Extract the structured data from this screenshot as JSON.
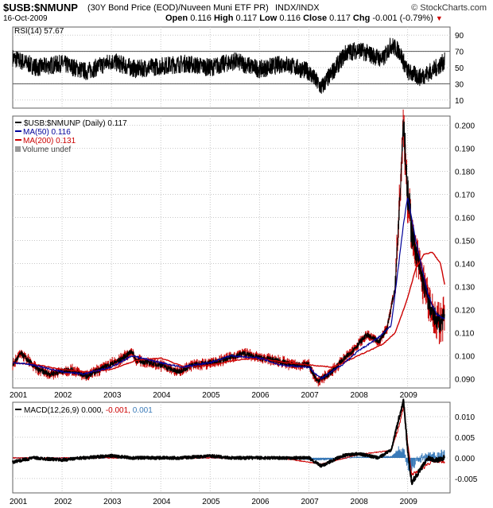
{
  "header": {
    "symbol": "$USB:$NMUNP",
    "description": "(30Y Bond Price (EOD)/Nuveen Muni ETF PR)",
    "instrument": "INDX/INDX",
    "brand": "© StockCharts.com",
    "date": "16-Oct-2009",
    "open_label": "Open",
    "open": "0.116",
    "high_label": "High",
    "high": "0.117",
    "low_label": "Low",
    "low": "0.116",
    "close_label": "Close",
    "close": "0.117",
    "chg_label": "Chg",
    "chg": "-0.001 (-0.79%)",
    "chg_color": "#cc0000"
  },
  "colors": {
    "price": "#000000",
    "ma50": "#000099",
    "ma200": "#cc0000",
    "red_candle": "#cc0000",
    "macd_hist": "#3a7ab8",
    "macd_signal": "#cc0000",
    "macd_line": "#000000",
    "grid": "#c8c8c8",
    "frame": "#606060"
  },
  "chart_data": [
    {
      "type": "line",
      "panel": "rsi",
      "legend": "RSI(14) 57.67",
      "yticks": [
        10,
        30,
        50,
        70,
        90
      ],
      "ylim": [
        0,
        100
      ],
      "reference_lines": [
        30,
        70
      ],
      "x_start": "2001-01",
      "x_end": "2009-10",
      "series": [
        {
          "name": "RSI(14)",
          "x": [
            "2001-01",
            "2001-07",
            "2002-01",
            "2002-07",
            "2003-01",
            "2003-07",
            "2004-01",
            "2004-07",
            "2005-01",
            "2005-07",
            "2006-01",
            "2006-07",
            "2007-01",
            "2007-04",
            "2007-10",
            "2008-01",
            "2008-07",
            "2008-09",
            "2008-11",
            "2009-01",
            "2009-04",
            "2009-07",
            "2009-10"
          ],
          "values": [
            62,
            50,
            55,
            45,
            58,
            48,
            52,
            55,
            50,
            58,
            48,
            55,
            45,
            25,
            68,
            72,
            60,
            78,
            70,
            45,
            38,
            46,
            57.67
          ]
        }
      ]
    },
    {
      "type": "line",
      "panel": "price",
      "legend": [
        "$USB:$NMUNP (Daily) 0.117",
        "MA(50) 0.116",
        "MA(200) 0.131",
        "Volume undef"
      ],
      "yticks": [
        0.09,
        0.1,
        0.11,
        0.12,
        0.13,
        0.14,
        0.15,
        0.16,
        0.17,
        0.18,
        0.19,
        0.2
      ],
      "ylim": [
        0.086,
        0.204
      ],
      "xticks": [
        "2001",
        "2002",
        "2003",
        "2004",
        "2005",
        "2006",
        "2007",
        "2008",
        "2009"
      ],
      "series": [
        {
          "name": "$USB:$NMUNP (Daily)",
          "x": [
            "2001-01",
            "2001-03",
            "2001-07",
            "2001-10",
            "2002-03",
            "2002-07",
            "2002-10",
            "2003-03",
            "2003-06",
            "2003-07",
            "2003-10",
            "2004-01",
            "2004-05",
            "2004-09",
            "2005-01",
            "2005-04",
            "2005-09",
            "2006-01",
            "2006-05",
            "2006-09",
            "2007-01",
            "2007-03",
            "2007-06",
            "2007-08",
            "2007-11",
            "2008-03",
            "2008-06",
            "2008-08",
            "2008-10",
            "2008-11",
            "2008-12",
            "2009-01",
            "2009-02",
            "2009-03",
            "2009-05",
            "2009-07",
            "2009-09",
            "2009-10"
          ],
          "values": [
            0.096,
            0.101,
            0.094,
            0.092,
            0.094,
            0.091,
            0.094,
            0.098,
            0.102,
            0.098,
            0.097,
            0.096,
            0.093,
            0.096,
            0.097,
            0.098,
            0.101,
            0.099,
            0.098,
            0.096,
            0.096,
            0.089,
            0.092,
            0.096,
            0.101,
            0.109,
            0.106,
            0.112,
            0.13,
            0.165,
            0.204,
            0.17,
            0.155,
            0.145,
            0.13,
            0.118,
            0.114,
            0.117
          ]
        },
        {
          "name": "MA(50)",
          "x": [
            "2001-01",
            "2001-06",
            "2002-01",
            "2002-06",
            "2003-01",
            "2003-06",
            "2004-01",
            "2004-06",
            "2005-01",
            "2005-06",
            "2006-01",
            "2006-06",
            "2007-01",
            "2007-04",
            "2007-09",
            "2008-01",
            "2008-06",
            "2008-09",
            "2008-12",
            "2009-01",
            "2009-03",
            "2009-06",
            "2009-08",
            "2009-10"
          ],
          "values": [
            0.097,
            0.096,
            0.093,
            0.092,
            0.095,
            0.1,
            0.097,
            0.095,
            0.097,
            0.1,
            0.099,
            0.096,
            0.095,
            0.09,
            0.096,
            0.102,
            0.108,
            0.113,
            0.157,
            0.169,
            0.15,
            0.126,
            0.118,
            0.116
          ]
        },
        {
          "name": "MA(200)",
          "x": [
            "2001-01",
            "2001-07",
            "2002-01",
            "2002-07",
            "2003-01",
            "2003-07",
            "2004-01",
            "2004-07",
            "2005-01",
            "2005-07",
            "2006-01",
            "2006-07",
            "2007-01",
            "2007-07",
            "2008-01",
            "2008-07",
            "2008-10",
            "2009-01",
            "2009-03",
            "2009-05",
            "2009-07",
            "2009-09",
            "2009-10"
          ],
          "values": [
            0.097,
            0.096,
            0.094,
            0.093,
            0.094,
            0.098,
            0.099,
            0.095,
            0.096,
            0.098,
            0.099,
            0.097,
            0.096,
            0.095,
            0.1,
            0.105,
            0.11,
            0.125,
            0.138,
            0.144,
            0.145,
            0.14,
            0.131
          ]
        }
      ]
    },
    {
      "type": "line",
      "panel": "macd",
      "legend": {
        "label": "MACD(12,26,9)",
        "macd": "0.000",
        "signal": "-0.001",
        "hist": "0.001"
      },
      "yticks": [
        -0.005,
        0.0,
        0.005,
        0.01
      ],
      "ylim": [
        -0.0085,
        0.0135
      ],
      "xticks": [
        "2001",
        "2002",
        "2003",
        "2004",
        "2005",
        "2006",
        "2007",
        "2008",
        "2009"
      ],
      "series": [
        {
          "name": "MACD",
          "x": [
            "2001-01",
            "2001-06",
            "2002-01",
            "2002-06",
            "2003-01",
            "2003-06",
            "2004-01",
            "2004-06",
            "2005-01",
            "2005-06",
            "2006-01",
            "2006-06",
            "2007-01",
            "2007-04",
            "2007-09",
            "2008-01",
            "2008-06",
            "2008-09",
            "2008-11",
            "2008-12",
            "2009-01",
            "2009-02",
            "2009-04",
            "2009-06",
            "2009-08",
            "2009-10"
          ],
          "values": [
            -0.001,
            0.0,
            -0.0005,
            0.0,
            0.0005,
            0.0,
            0.0,
            0.0,
            0.0005,
            0.0,
            0.0,
            0.0,
            0.0,
            -0.002,
            0.0005,
            0.001,
            0.0,
            0.002,
            0.01,
            0.014,
            0.002,
            -0.006,
            -0.003,
            0.0,
            -0.0005,
            0.0
          ]
        },
        {
          "name": "Signal",
          "x": [
            "2001-01",
            "2006-06",
            "2007-04",
            "2008-01",
            "2008-09",
            "2008-11",
            "2008-12",
            "2009-01",
            "2009-02",
            "2009-04",
            "2009-07",
            "2009-10"
          ],
          "values": [
            0.0,
            0.0,
            -0.0015,
            0.0008,
            0.0018,
            0.008,
            0.0125,
            0.004,
            -0.004,
            -0.003,
            -0.0008,
            -0.001
          ]
        },
        {
          "name": "Histogram",
          "x": [
            "2001-01",
            "2006-06",
            "2007-04",
            "2008-01",
            "2008-09",
            "2008-11",
            "2008-12",
            "2009-01",
            "2009-02",
            "2009-04",
            "2009-07",
            "2009-10"
          ],
          "values": [
            0.0,
            0.0,
            -0.0005,
            0.0002,
            0.0003,
            0.002,
            0.002,
            -0.002,
            -0.002,
            0.0,
            0.0003,
            0.001
          ]
        }
      ]
    }
  ]
}
